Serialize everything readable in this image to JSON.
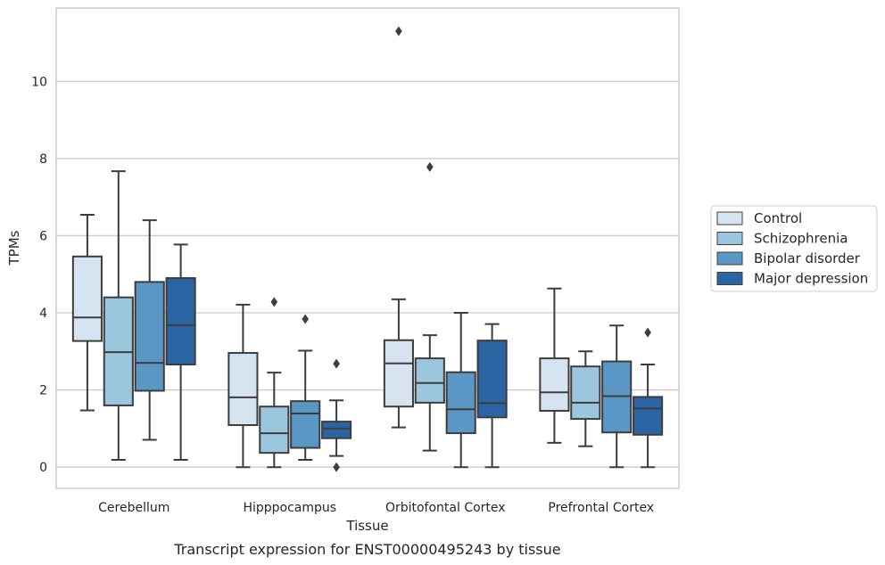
{
  "chart_data": {
    "type": "box",
    "title": "",
    "caption": "Transcript expression for ENST00000495243 by tissue",
    "xlabel": "Tissue",
    "ylabel": "TPMs",
    "ylim": [
      -0.55,
      11.9
    ],
    "yticks": [
      0,
      2,
      4,
      6,
      8,
      10
    ],
    "grid": "horizontal",
    "legend_position": "right",
    "categories": [
      "Cerebellum",
      "Hipppocampus",
      "Orbitofontal Cortex",
      "Prefrontal Cortex"
    ],
    "series": [
      {
        "name": "Control",
        "color": "#d6e4f2",
        "boxes": [
          {
            "whislo": 1.47,
            "q1": 3.27,
            "med": 3.88,
            "q3": 5.46,
            "whishi": 6.54,
            "fliers": []
          },
          {
            "whislo": 0.0,
            "q1": 1.09,
            "med": 1.81,
            "q3": 2.96,
            "whishi": 4.21,
            "fliers": []
          },
          {
            "whislo": 1.03,
            "q1": 1.57,
            "med": 2.69,
            "q3": 3.29,
            "whishi": 4.35,
            "fliers": [
              11.3
            ]
          },
          {
            "whislo": 0.63,
            "q1": 1.46,
            "med": 1.94,
            "q3": 2.82,
            "whishi": 4.63,
            "fliers": []
          }
        ]
      },
      {
        "name": "Schizophrenia",
        "color": "#9bc6de",
        "boxes": [
          {
            "whislo": 0.19,
            "q1": 1.6,
            "med": 2.98,
            "q3": 4.4,
            "whishi": 7.67,
            "fliers": []
          },
          {
            "whislo": 0.0,
            "q1": 0.37,
            "med": 0.88,
            "q3": 1.57,
            "whishi": 2.45,
            "fliers": [
              4.28
            ]
          },
          {
            "whislo": 0.43,
            "q1": 1.67,
            "med": 2.18,
            "q3": 2.82,
            "whishi": 3.42,
            "fliers": [
              7.78
            ]
          },
          {
            "whislo": 0.54,
            "q1": 1.25,
            "med": 1.67,
            "q3": 2.61,
            "whishi": 3.0,
            "fliers": []
          }
        ]
      },
      {
        "name": "Bipolar disorder",
        "color": "#5b97c4",
        "boxes": [
          {
            "whislo": 0.71,
            "q1": 1.98,
            "med": 2.7,
            "q3": 4.8,
            "whishi": 6.4,
            "fliers": []
          },
          {
            "whislo": 0.19,
            "q1": 0.5,
            "med": 1.39,
            "q3": 1.71,
            "whishi": 3.02,
            "fliers": [
              3.84
            ]
          },
          {
            "whislo": 0.0,
            "q1": 0.88,
            "med": 1.5,
            "q3": 2.46,
            "whishi": 4.0,
            "fliers": []
          },
          {
            "whislo": 0.0,
            "q1": 0.9,
            "med": 1.84,
            "q3": 2.74,
            "whishi": 3.67,
            "fliers": []
          }
        ]
      },
      {
        "name": "Major depression",
        "color": "#2b64a3",
        "boxes": [
          {
            "whislo": 0.19,
            "q1": 2.66,
            "med": 3.68,
            "q3": 4.9,
            "whishi": 5.77,
            "fliers": []
          },
          {
            "whislo": 0.29,
            "q1": 0.75,
            "med": 1.0,
            "q3": 1.18,
            "whishi": 1.73,
            "fliers": [
              2.68,
              0.0
            ]
          },
          {
            "whislo": 0.0,
            "q1": 1.29,
            "med": 1.66,
            "q3": 3.28,
            "whishi": 3.71,
            "fliers": []
          },
          {
            "whislo": 0.0,
            "q1": 0.84,
            "med": 1.52,
            "q3": 1.82,
            "whishi": 2.66,
            "fliers": [
              3.49
            ]
          }
        ]
      }
    ]
  }
}
